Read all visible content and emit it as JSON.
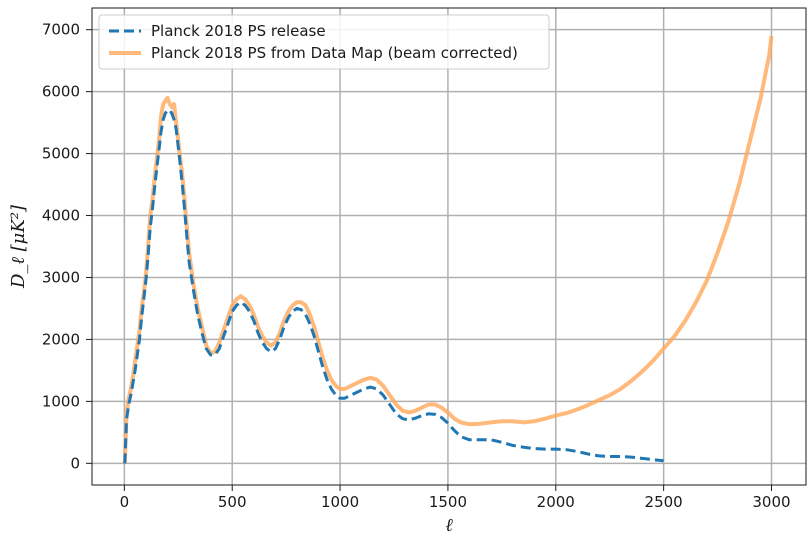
{
  "chart_data": {
    "type": "line",
    "title": "",
    "xlabel": "ℓ",
    "ylabel": "D_ℓ [μK²]",
    "xlim": [
      -150,
      3160
    ],
    "ylim": [
      -350,
      7350
    ],
    "xticks": [
      0,
      500,
      1000,
      1500,
      2000,
      2500,
      3000
    ],
    "yticks": [
      0,
      1000,
      2000,
      3000,
      4000,
      5000,
      6000,
      7000
    ],
    "grid": true,
    "legend_position": "top-left",
    "series": [
      {
        "name": "Planck 2018 PS from Data Map (beam corrected)",
        "color": "#ffa75a",
        "style": "solid",
        "x": [
          2,
          10,
          20,
          30,
          40,
          50,
          60,
          70,
          80,
          90,
          100,
          110,
          120,
          130,
          140,
          150,
          160,
          170,
          180,
          190,
          200,
          210,
          220,
          230,
          240,
          250,
          260,
          270,
          280,
          290,
          300,
          320,
          340,
          360,
          380,
          400,
          420,
          440,
          460,
          480,
          500,
          520,
          540,
          560,
          580,
          600,
          620,
          640,
          660,
          680,
          700,
          720,
          740,
          760,
          780,
          800,
          820,
          840,
          860,
          880,
          900,
          920,
          940,
          960,
          980,
          1000,
          1020,
          1050,
          1080,
          1110,
          1140,
          1170,
          1200,
          1230,
          1260,
          1290,
          1320,
          1350,
          1380,
          1410,
          1440,
          1470,
          1500,
          1530,
          1560,
          1600,
          1650,
          1700,
          1750,
          1800,
          1850,
          1900,
          1950,
          2000,
          2050,
          2100,
          2150,
          2200,
          2250,
          2300,
          2350,
          2400,
          2450,
          2500,
          2550,
          2600,
          2650,
          2700,
          2750,
          2800,
          2850,
          2900,
          2950,
          2990,
          3000
        ],
        "y": [
          0,
          800,
          1050,
          1200,
          1400,
          1650,
          1900,
          2150,
          2500,
          2750,
          3050,
          3500,
          4000,
          4250,
          4600,
          4900,
          5200,
          5600,
          5800,
          5850,
          5900,
          5800,
          5750,
          5800,
          5500,
          5200,
          4900,
          4600,
          4200,
          3800,
          3400,
          2900,
          2500,
          2200,
          1900,
          1780,
          1800,
          1950,
          2150,
          2350,
          2550,
          2650,
          2700,
          2650,
          2550,
          2400,
          2200,
          2050,
          1950,
          1900,
          1950,
          2100,
          2300,
          2450,
          2550,
          2600,
          2600,
          2550,
          2400,
          2200,
          1950,
          1700,
          1500,
          1350,
          1250,
          1200,
          1200,
          1250,
          1300,
          1350,
          1380,
          1350,
          1250,
          1100,
          950,
          850,
          820,
          850,
          900,
          950,
          950,
          900,
          820,
          720,
          660,
          630,
          640,
          660,
          680,
          680,
          660,
          680,
          720,
          770,
          810,
          870,
          940,
          1020,
          1100,
          1200,
          1330,
          1480,
          1650,
          1850,
          2050,
          2300,
          2600,
          2950,
          3400,
          3900,
          4500,
          5200,
          5900,
          6600,
          6900
        ]
      },
      {
        "name": "Planck 2018 PS release",
        "color": "#1f77b4",
        "style": "dashed",
        "x": [
          2,
          10,
          20,
          30,
          40,
          50,
          60,
          70,
          80,
          90,
          100,
          110,
          120,
          130,
          140,
          150,
          160,
          170,
          180,
          190,
          200,
          210,
          220,
          230,
          240,
          250,
          260,
          270,
          280,
          290,
          300,
          320,
          340,
          360,
          380,
          400,
          420,
          440,
          460,
          480,
          500,
          520,
          540,
          560,
          580,
          600,
          620,
          640,
          660,
          680,
          700,
          720,
          740,
          760,
          780,
          800,
          820,
          840,
          860,
          880,
          900,
          920,
          940,
          960,
          980,
          1000,
          1020,
          1050,
          1080,
          1110,
          1140,
          1170,
          1200,
          1230,
          1260,
          1290,
          1320,
          1350,
          1380,
          1410,
          1440,
          1470,
          1500,
          1530,
          1560,
          1600,
          1650,
          1700,
          1750,
          1800,
          1850,
          1900,
          1950,
          2000,
          2050,
          2100,
          2150,
          2200,
          2250,
          2300,
          2350,
          2400,
          2450,
          2500
        ],
        "y": [
          0,
          700,
          950,
          1100,
          1300,
          1500,
          1750,
          2000,
          2350,
          2650,
          2950,
          3350,
          3800,
          4100,
          4450,
          4750,
          5050,
          5350,
          5550,
          5650,
          5700,
          5700,
          5650,
          5550,
          5400,
          5100,
          4800,
          4450,
          4050,
          3650,
          3250,
          2800,
          2400,
          2100,
          1850,
          1750,
          1750,
          1850,
          2050,
          2250,
          2450,
          2550,
          2600,
          2550,
          2450,
          2300,
          2100,
          1950,
          1850,
          1800,
          1850,
          2000,
          2200,
          2350,
          2450,
          2500,
          2480,
          2400,
          2250,
          2050,
          1800,
          1550,
          1350,
          1200,
          1100,
          1050,
          1050,
          1100,
          1150,
          1200,
          1230,
          1200,
          1100,
          950,
          800,
          720,
          700,
          730,
          770,
          800,
          790,
          740,
          650,
          530,
          430,
          380,
          380,
          380,
          340,
          290,
          260,
          240,
          230,
          230,
          220,
          190,
          150,
          120,
          110,
          110,
          100,
          80,
          60,
          40
        ]
      }
    ]
  }
}
